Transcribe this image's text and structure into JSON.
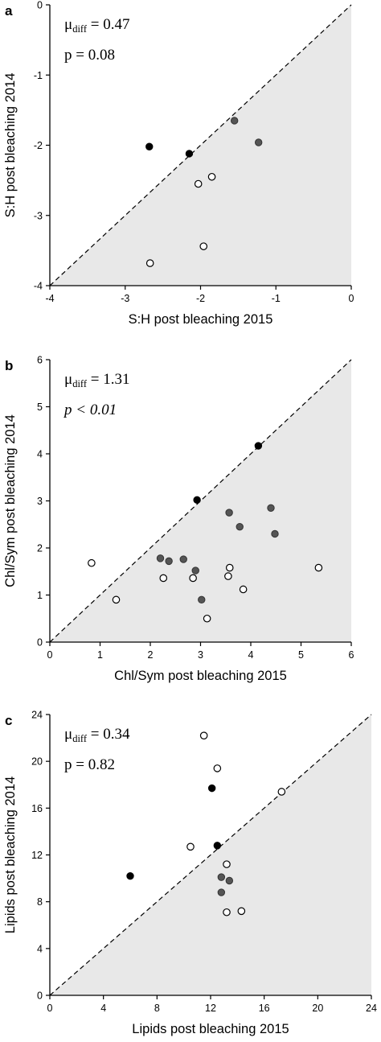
{
  "chart_data": [
    {
      "type": "scatter",
      "panel": "a",
      "xlabel": "S:H post bleaching 2015",
      "ylabel": "S:H post bleaching 2014",
      "xlim": [
        -4,
        0
      ],
      "ylim": [
        -4,
        0
      ],
      "xticks": [
        -4,
        -3,
        -2,
        -1,
        0
      ],
      "yticks": [
        -4,
        -3,
        -2,
        -1,
        0
      ],
      "xtick_labels": [
        "-4",
        "-3",
        "-2",
        "-1",
        "0"
      ],
      "ytick_labels": [
        "-4",
        "-3",
        "-2",
        "-1",
        "0"
      ],
      "annotation": {
        "mu": "μ",
        "mu_sub": "diff",
        "mu_value": " = 0.47",
        "p_text": "p = 0.08",
        "p_italic": false
      },
      "diagonal": "dashed 1:1 line",
      "shaded_region": "below diagonal",
      "colors": {
        "black": "#000000",
        "gray": "#555555",
        "open_fill": "#ffffff",
        "shade": "#e8e8e8"
      },
      "points": [
        {
          "x": -2.68,
          "y": -2.02,
          "style": "black"
        },
        {
          "x": -2.15,
          "y": -2.12,
          "style": "black"
        },
        {
          "x": -1.55,
          "y": -1.65,
          "style": "gray"
        },
        {
          "x": -1.23,
          "y": -1.96,
          "style": "gray"
        },
        {
          "x": -2.03,
          "y": -2.55,
          "style": "open"
        },
        {
          "x": -1.85,
          "y": -2.45,
          "style": "open"
        },
        {
          "x": -1.96,
          "y": -3.44,
          "style": "open"
        },
        {
          "x": -2.67,
          "y": -3.68,
          "style": "open"
        }
      ]
    },
    {
      "type": "scatter",
      "panel": "b",
      "xlabel": "Chl/Sym post bleaching 2015",
      "ylabel": "Chl/Sym post bleaching 2014",
      "xlim": [
        0,
        6
      ],
      "ylim": [
        0,
        6
      ],
      "xticks": [
        0,
        1,
        2,
        3,
        4,
        5,
        6
      ],
      "yticks": [
        0,
        1,
        2,
        3,
        4,
        5,
        6
      ],
      "xtick_labels": [
        "0",
        "1",
        "2",
        "3",
        "4",
        "5",
        "6"
      ],
      "ytick_labels": [
        "0",
        "1",
        "2",
        "3",
        "4",
        "5",
        "6"
      ],
      "annotation": {
        "mu": "μ",
        "mu_sub": "diff",
        "mu_value": " = 1.31",
        "p_text": "p < 0.01",
        "p_italic": true
      },
      "diagonal": "dashed 1:1 line",
      "shaded_region": "below diagonal",
      "colors": {
        "black": "#000000",
        "gray": "#555555",
        "open_fill": "#ffffff",
        "shade": "#e8e8e8"
      },
      "points": [
        {
          "x": 4.15,
          "y": 4.17,
          "style": "black"
        },
        {
          "x": 2.93,
          "y": 3.02,
          "style": "black"
        },
        {
          "x": 3.57,
          "y": 2.75,
          "style": "gray"
        },
        {
          "x": 4.4,
          "y": 2.85,
          "style": "gray"
        },
        {
          "x": 3.78,
          "y": 2.45,
          "style": "gray"
        },
        {
          "x": 4.48,
          "y": 2.3,
          "style": "gray"
        },
        {
          "x": 2.2,
          "y": 1.78,
          "style": "gray"
        },
        {
          "x": 2.37,
          "y": 1.72,
          "style": "gray"
        },
        {
          "x": 2.66,
          "y": 1.76,
          "style": "gray"
        },
        {
          "x": 2.9,
          "y": 1.52,
          "style": "gray"
        },
        {
          "x": 3.02,
          "y": 0.9,
          "style": "gray"
        },
        {
          "x": 0.83,
          "y": 1.68,
          "style": "open"
        },
        {
          "x": 1.32,
          "y": 0.9,
          "style": "open"
        },
        {
          "x": 2.26,
          "y": 1.36,
          "style": "open"
        },
        {
          "x": 2.85,
          "y": 1.36,
          "style": "open"
        },
        {
          "x": 3.55,
          "y": 1.4,
          "style": "open"
        },
        {
          "x": 3.58,
          "y": 1.58,
          "style": "open"
        },
        {
          "x": 3.85,
          "y": 1.12,
          "style": "open"
        },
        {
          "x": 3.13,
          "y": 0.5,
          "style": "open"
        },
        {
          "x": 5.35,
          "y": 1.58,
          "style": "open"
        }
      ]
    },
    {
      "type": "scatter",
      "panel": "c",
      "xlabel": "Lipids post bleaching 2015",
      "ylabel": "Lipids post bleaching 2014",
      "xlim": [
        0,
        24
      ],
      "ylim": [
        0,
        24
      ],
      "xticks": [
        0,
        4,
        8,
        12,
        16,
        20,
        24
      ],
      "yticks": [
        0,
        4,
        8,
        12,
        16,
        20,
        24
      ],
      "xtick_labels": [
        "0",
        "4",
        "8",
        "12",
        "16",
        "20",
        "24"
      ],
      "ytick_labels": [
        "0",
        "4",
        "8",
        "12",
        "16",
        "20",
        "24"
      ],
      "annotation": {
        "mu": "μ",
        "mu_sub": "diff",
        "mu_value": " = 0.34",
        "p_text": "p = 0.82",
        "p_italic": false
      },
      "diagonal": "dashed 1:1 line",
      "shaded_region": "below diagonal",
      "colors": {
        "black": "#000000",
        "gray": "#555555",
        "open_fill": "#ffffff",
        "shade": "#e8e8e8"
      },
      "points": [
        {
          "x": 6.0,
          "y": 10.2,
          "style": "black"
        },
        {
          "x": 12.1,
          "y": 17.7,
          "style": "black"
        },
        {
          "x": 12.5,
          "y": 12.8,
          "style": "black"
        },
        {
          "x": 11.5,
          "y": 22.2,
          "style": "open"
        },
        {
          "x": 12.5,
          "y": 19.4,
          "style": "open"
        },
        {
          "x": 10.5,
          "y": 12.7,
          "style": "open"
        },
        {
          "x": 17.3,
          "y": 17.4,
          "style": "open"
        },
        {
          "x": 13.2,
          "y": 11.2,
          "style": "open"
        },
        {
          "x": 13.2,
          "y": 7.1,
          "style": "open"
        },
        {
          "x": 14.3,
          "y": 7.2,
          "style": "open"
        },
        {
          "x": 12.8,
          "y": 10.1,
          "style": "gray"
        },
        {
          "x": 13.4,
          "y": 9.8,
          "style": "gray"
        },
        {
          "x": 12.8,
          "y": 8.8,
          "style": "gray"
        }
      ]
    }
  ]
}
